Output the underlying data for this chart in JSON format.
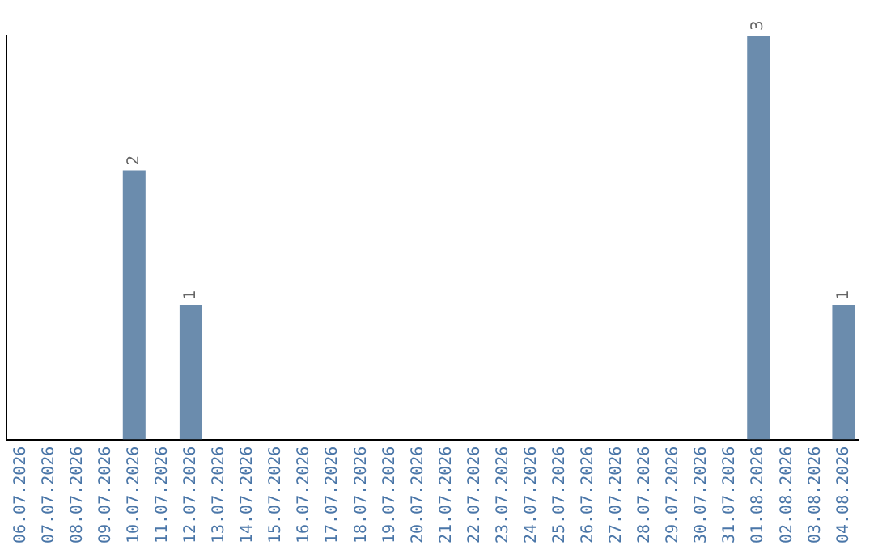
{
  "chart_data": {
    "type": "bar",
    "categories": [
      "06.07.2026",
      "07.07.2026",
      "08.07.2026",
      "09.07.2026",
      "10.07.2026",
      "11.07.2026",
      "12.07.2026",
      "13.07.2026",
      "14.07.2026",
      "15.07.2026",
      "16.07.2026",
      "17.07.2026",
      "18.07.2026",
      "19.07.2026",
      "20.07.2026",
      "21.07.2026",
      "22.07.2026",
      "23.07.2026",
      "24.07.2026",
      "25.07.2026",
      "26.07.2026",
      "27.07.2026",
      "28.07.2026",
      "29.07.2026",
      "30.07.2026",
      "31.07.2026",
      "01.08.2026",
      "02.08.2026",
      "03.08.2026",
      "04.08.2026"
    ],
    "values": [
      0,
      0,
      0,
      0,
      2,
      0,
      1,
      0,
      0,
      0,
      0,
      0,
      0,
      0,
      0,
      0,
      0,
      0,
      0,
      0,
      0,
      0,
      0,
      0,
      0,
      0,
      3,
      0,
      0,
      1
    ],
    "value_labels": [
      null,
      null,
      null,
      null,
      "2",
      null,
      "1",
      null,
      null,
      null,
      null,
      null,
      null,
      null,
      null,
      null,
      null,
      null,
      null,
      null,
      null,
      null,
      null,
      null,
      null,
      null,
      "3",
      null,
      null,
      "1"
    ],
    "color": "#6b8cad",
    "tick_labels": "x",
    "grid": false,
    "legend": false
  }
}
